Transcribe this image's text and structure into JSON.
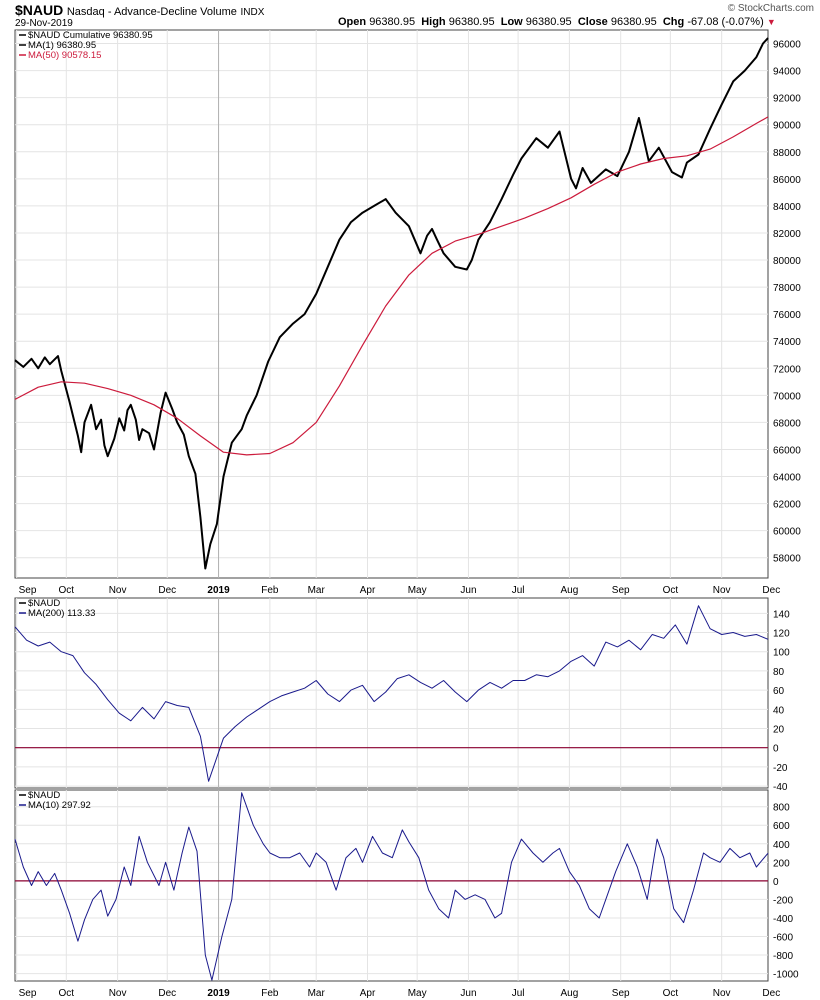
{
  "header": {
    "symbol": "$NAUD",
    "name": "Nasdaq - Advance-Decline Volume",
    "exchange": "INDX",
    "date": "29-Nov-2019",
    "watermark": "© StockCharts.com",
    "open_label": "Open",
    "open": "96380.95",
    "high_label": "High",
    "high": "96380.95",
    "low_label": "Low",
    "low": "96380.95",
    "close_label": "Close",
    "close": "96380.95",
    "chg_label": "Chg",
    "chg": "-67.08 (-0.07%)"
  },
  "colors": {
    "price_line": "#000000",
    "ma50_line": "#cc1b3c",
    "indicator_line": "#1a1a8c",
    "zero_line": "#8b0030",
    "grid": "#e4e4e4",
    "chg_marker": "#cc1b3c"
  },
  "chart_data": [
    {
      "type": "line",
      "panel": "main",
      "legend": [
        "$NAUD Cumulative 96380.95",
        "MA(1) 96380.95",
        "MA(50) 90578.15"
      ],
      "x_ticks": [
        "Sep",
        "Oct",
        "Nov",
        "Dec",
        "2019",
        "Feb",
        "Mar",
        "Apr",
        "May",
        "Jun",
        "Jul",
        "Aug",
        "Sep",
        "Oct",
        "Nov",
        "Dec"
      ],
      "x_range": [
        "2018-08-31",
        "2019-11-29"
      ],
      "ylim": [
        56500,
        97000
      ],
      "y_ticks": [
        58000,
        60000,
        62000,
        64000,
        66000,
        68000,
        70000,
        72000,
        74000,
        76000,
        78000,
        80000,
        82000,
        84000,
        86000,
        88000,
        90000,
        92000,
        94000,
        96000
      ],
      "grid": true,
      "series": [
        {
          "name": "$NAUD Cumulative",
          "color": "#000000",
          "x": [
            "2018-08-31",
            "2018-09-05",
            "2018-09-10",
            "2018-09-14",
            "2018-09-18",
            "2018-09-21",
            "2018-09-26",
            "2018-09-28",
            "2018-10-03",
            "2018-10-08",
            "2018-10-10",
            "2018-10-12",
            "2018-10-16",
            "2018-10-19",
            "2018-10-22",
            "2018-10-24",
            "2018-10-26",
            "2018-10-30",
            "2018-11-02",
            "2018-11-05",
            "2018-11-07",
            "2018-11-09",
            "2018-11-12",
            "2018-11-14",
            "2018-11-16",
            "2018-11-20",
            "2018-11-23",
            "2018-11-27",
            "2018-11-30",
            "2018-12-04",
            "2018-12-07",
            "2018-12-11",
            "2018-12-14",
            "2018-12-18",
            "2018-12-21",
            "2018-12-24",
            "2018-12-27",
            "2018-12-31",
            "2019-01-04",
            "2019-01-09",
            "2019-01-15",
            "2019-01-18",
            "2019-01-24",
            "2019-01-31",
            "2019-02-07",
            "2019-02-15",
            "2019-02-22",
            "2019-03-01",
            "2019-03-08",
            "2019-03-15",
            "2019-03-22",
            "2019-03-29",
            "2019-04-05",
            "2019-04-12",
            "2019-04-18",
            "2019-04-26",
            "2019-05-03",
            "2019-05-07",
            "2019-05-10",
            "2019-05-13",
            "2019-05-17",
            "2019-05-24",
            "2019-05-31",
            "2019-06-03",
            "2019-06-07",
            "2019-06-14",
            "2019-06-21",
            "2019-06-28",
            "2019-07-03",
            "2019-07-12",
            "2019-07-19",
            "2019-07-26",
            "2019-08-02",
            "2019-08-05",
            "2019-08-09",
            "2019-08-14",
            "2019-08-23",
            "2019-08-30",
            "2019-09-06",
            "2019-09-12",
            "2019-09-18",
            "2019-09-24",
            "2019-10-02",
            "2019-10-08",
            "2019-10-11",
            "2019-10-18",
            "2019-10-25",
            "2019-11-01",
            "2019-11-08",
            "2019-11-15",
            "2019-11-22",
            "2019-11-26",
            "2019-11-29"
          ],
          "values": [
            72600,
            72100,
            72700,
            72000,
            72800,
            72300,
            72900,
            71800,
            69500,
            67000,
            65800,
            68000,
            69300,
            67500,
            68200,
            66300,
            65500,
            66800,
            68300,
            67400,
            68900,
            69300,
            68200,
            66700,
            67500,
            67200,
            66000,
            68700,
            70200,
            69000,
            68000,
            67100,
            65500,
            64200,
            61000,
            57200,
            59000,
            60500,
            64000,
            66500,
            67500,
            68500,
            70000,
            72500,
            74300,
            75300,
            76000,
            77500,
            79500,
            81500,
            82800,
            83500,
            84000,
            84500,
            83500,
            82500,
            80500,
            81800,
            82300,
            81500,
            80500,
            79500,
            79300,
            80000,
            81500,
            82800,
            84500,
            86300,
            87500,
            89000,
            88300,
            89500,
            86000,
            85300,
            86800,
            85700,
            86700,
            86200,
            88000,
            90500,
            87300,
            88300,
            86500,
            86100,
            87200,
            87800,
            89700,
            91500,
            93200,
            94000,
            95000,
            96000,
            96400
          ]
        },
        {
          "name": "MA(50)",
          "color": "#cc1b3c",
          "x": [
            "2018-08-31",
            "2018-09-14",
            "2018-09-28",
            "2018-10-12",
            "2018-10-26",
            "2018-11-09",
            "2018-11-23",
            "2018-12-07",
            "2018-12-21",
            "2019-01-04",
            "2019-01-18",
            "2019-02-01",
            "2019-02-15",
            "2019-03-01",
            "2019-03-15",
            "2019-03-29",
            "2019-04-12",
            "2019-04-26",
            "2019-05-10",
            "2019-05-24",
            "2019-06-07",
            "2019-06-21",
            "2019-07-05",
            "2019-07-19",
            "2019-08-02",
            "2019-08-16",
            "2019-08-30",
            "2019-09-13",
            "2019-09-27",
            "2019-10-11",
            "2019-10-25",
            "2019-11-08",
            "2019-11-22",
            "2019-11-29"
          ],
          "values": [
            69700,
            70600,
            71000,
            70900,
            70500,
            70000,
            69300,
            68300,
            67000,
            65800,
            65600,
            65700,
            66500,
            68000,
            70700,
            73700,
            76600,
            78900,
            80500,
            81400,
            81900,
            82500,
            83100,
            83800,
            84600,
            85600,
            86500,
            87100,
            87500,
            87700,
            88200,
            89100,
            90100,
            90580
          ]
        }
      ]
    },
    {
      "type": "line",
      "panel": "indicator-1",
      "legend": [
        "$NAUD",
        "MA(200) 113.33"
      ],
      "x_range": [
        "2018-08-31",
        "2019-11-29"
      ],
      "ylim": [
        -42,
        156
      ],
      "y_ticks": [
        -40,
        -20,
        0,
        20,
        40,
        60,
        80,
        100,
        120,
        140
      ],
      "reference_line": 0,
      "grid": true,
      "series": [
        {
          "name": "MA(200)",
          "color": "#1a1a8c",
          "x": [
            "2018-08-31",
            "2018-09-07",
            "2018-09-14",
            "2018-09-21",
            "2018-09-28",
            "2018-10-05",
            "2018-10-12",
            "2018-10-19",
            "2018-10-26",
            "2018-11-02",
            "2018-11-09",
            "2018-11-16",
            "2018-11-23",
            "2018-11-30",
            "2018-12-07",
            "2018-12-14",
            "2018-12-21",
            "2018-12-26",
            "2019-01-04",
            "2019-01-11",
            "2019-01-18",
            "2019-01-25",
            "2019-02-01",
            "2019-02-08",
            "2019-02-15",
            "2019-02-22",
            "2019-03-01",
            "2019-03-08",
            "2019-03-15",
            "2019-03-22",
            "2019-03-29",
            "2019-04-05",
            "2019-04-12",
            "2019-04-19",
            "2019-04-26",
            "2019-05-03",
            "2019-05-10",
            "2019-05-17",
            "2019-05-24",
            "2019-05-31",
            "2019-06-07",
            "2019-06-14",
            "2019-06-21",
            "2019-06-28",
            "2019-07-05",
            "2019-07-12",
            "2019-07-19",
            "2019-07-26",
            "2019-08-02",
            "2019-08-09",
            "2019-08-16",
            "2019-08-23",
            "2019-08-30",
            "2019-09-06",
            "2019-09-13",
            "2019-09-20",
            "2019-09-27",
            "2019-10-04",
            "2019-10-11",
            "2019-10-18",
            "2019-10-25",
            "2019-11-01",
            "2019-11-08",
            "2019-11-15",
            "2019-11-22",
            "2019-11-29"
          ],
          "values": [
            126,
            112,
            106,
            110,
            100,
            96,
            78,
            66,
            50,
            36,
            28,
            42,
            30,
            48,
            44,
            42,
            12,
            -35,
            10,
            22,
            32,
            40,
            48,
            54,
            58,
            62,
            70,
            56,
            48,
            60,
            65,
            48,
            58,
            72,
            76,
            68,
            62,
            70,
            58,
            48,
            60,
            68,
            62,
            70,
            70,
            76,
            74,
            80,
            90,
            96,
            85,
            110,
            105,
            112,
            102,
            118,
            114,
            128,
            108,
            148,
            124,
            118,
            120,
            116,
            118,
            113
          ]
        },
        {
          "name": "$NAUD",
          "color": "#1a1a8c",
          "note_hidden": false
        }
      ]
    },
    {
      "type": "line",
      "panel": "indicator-2",
      "legend": [
        "$NAUD",
        "MA(10) 297.92"
      ],
      "x_ticks": [
        "Sep",
        "Oct",
        "Nov",
        "Dec",
        "2019",
        "Feb",
        "Mar",
        "Apr",
        "May",
        "Jun",
        "Jul",
        "Aug",
        "Sep",
        "Oct",
        "Nov",
        "Dec"
      ],
      "x_range": [
        "2018-08-31",
        "2019-11-29"
      ],
      "ylim": [
        -1080,
        980
      ],
      "y_ticks": [
        -1000,
        -800,
        -600,
        -400,
        -200,
        0,
        200,
        400,
        600,
        800
      ],
      "reference_line": 0,
      "grid": true,
      "series": [
        {
          "name": "MA(10)",
          "color": "#1a1a8c",
          "x": [
            "2018-08-31",
            "2018-09-05",
            "2018-09-10",
            "2018-09-14",
            "2018-09-19",
            "2018-09-24",
            "2018-09-28",
            "2018-10-03",
            "2018-10-08",
            "2018-10-12",
            "2018-10-17",
            "2018-10-22",
            "2018-10-26",
            "2018-10-31",
            "2018-11-05",
            "2018-11-09",
            "2018-11-14",
            "2018-11-19",
            "2018-11-26",
            "2018-11-30",
            "2018-12-05",
            "2018-12-10",
            "2018-12-14",
            "2018-12-19",
            "2018-12-24",
            "2018-12-28",
            "2019-01-03",
            "2019-01-09",
            "2019-01-15",
            "2019-01-22",
            "2019-01-28",
            "2019-02-01",
            "2019-02-07",
            "2019-02-13",
            "2019-02-19",
            "2019-02-25",
            "2019-03-01",
            "2019-03-07",
            "2019-03-13",
            "2019-03-19",
            "2019-03-25",
            "2019-03-29",
            "2019-04-04",
            "2019-04-10",
            "2019-04-16",
            "2019-04-22",
            "2019-04-26",
            "2019-05-02",
            "2019-05-08",
            "2019-05-14",
            "2019-05-20",
            "2019-05-24",
            "2019-05-30",
            "2019-06-05",
            "2019-06-11",
            "2019-06-17",
            "2019-06-21",
            "2019-06-27",
            "2019-07-03",
            "2019-07-10",
            "2019-07-16",
            "2019-07-22",
            "2019-07-26",
            "2019-08-01",
            "2019-08-07",
            "2019-08-13",
            "2019-08-19",
            "2019-08-23",
            "2019-08-29",
            "2019-09-05",
            "2019-09-11",
            "2019-09-17",
            "2019-09-23",
            "2019-09-27",
            "2019-10-03",
            "2019-10-09",
            "2019-10-15",
            "2019-10-21",
            "2019-10-25",
            "2019-10-31",
            "2019-11-06",
            "2019-11-12",
            "2019-11-18",
            "2019-11-22",
            "2019-11-29"
          ],
          "values": [
            450,
            150,
            -50,
            100,
            -50,
            80,
            -100,
            -350,
            -650,
            -420,
            -200,
            -100,
            -380,
            -200,
            150,
            -50,
            480,
            200,
            -50,
            200,
            -100,
            300,
            580,
            320,
            -800,
            -1070,
            -600,
            -200,
            950,
            600,
            400,
            300,
            250,
            250,
            300,
            150,
            300,
            200,
            -100,
            250,
            350,
            200,
            480,
            300,
            250,
            550,
            420,
            250,
            -100,
            -300,
            -400,
            -100,
            -200,
            -150,
            -200,
            -400,
            -350,
            200,
            450,
            300,
            200,
            300,
            350,
            100,
            -50,
            -300,
            -400,
            -200,
            100,
            400,
            150,
            -200,
            450,
            250,
            -300,
            -450,
            -100,
            300,
            250,
            200,
            350,
            250,
            300,
            150,
            298
          ]
        }
      ]
    }
  ]
}
